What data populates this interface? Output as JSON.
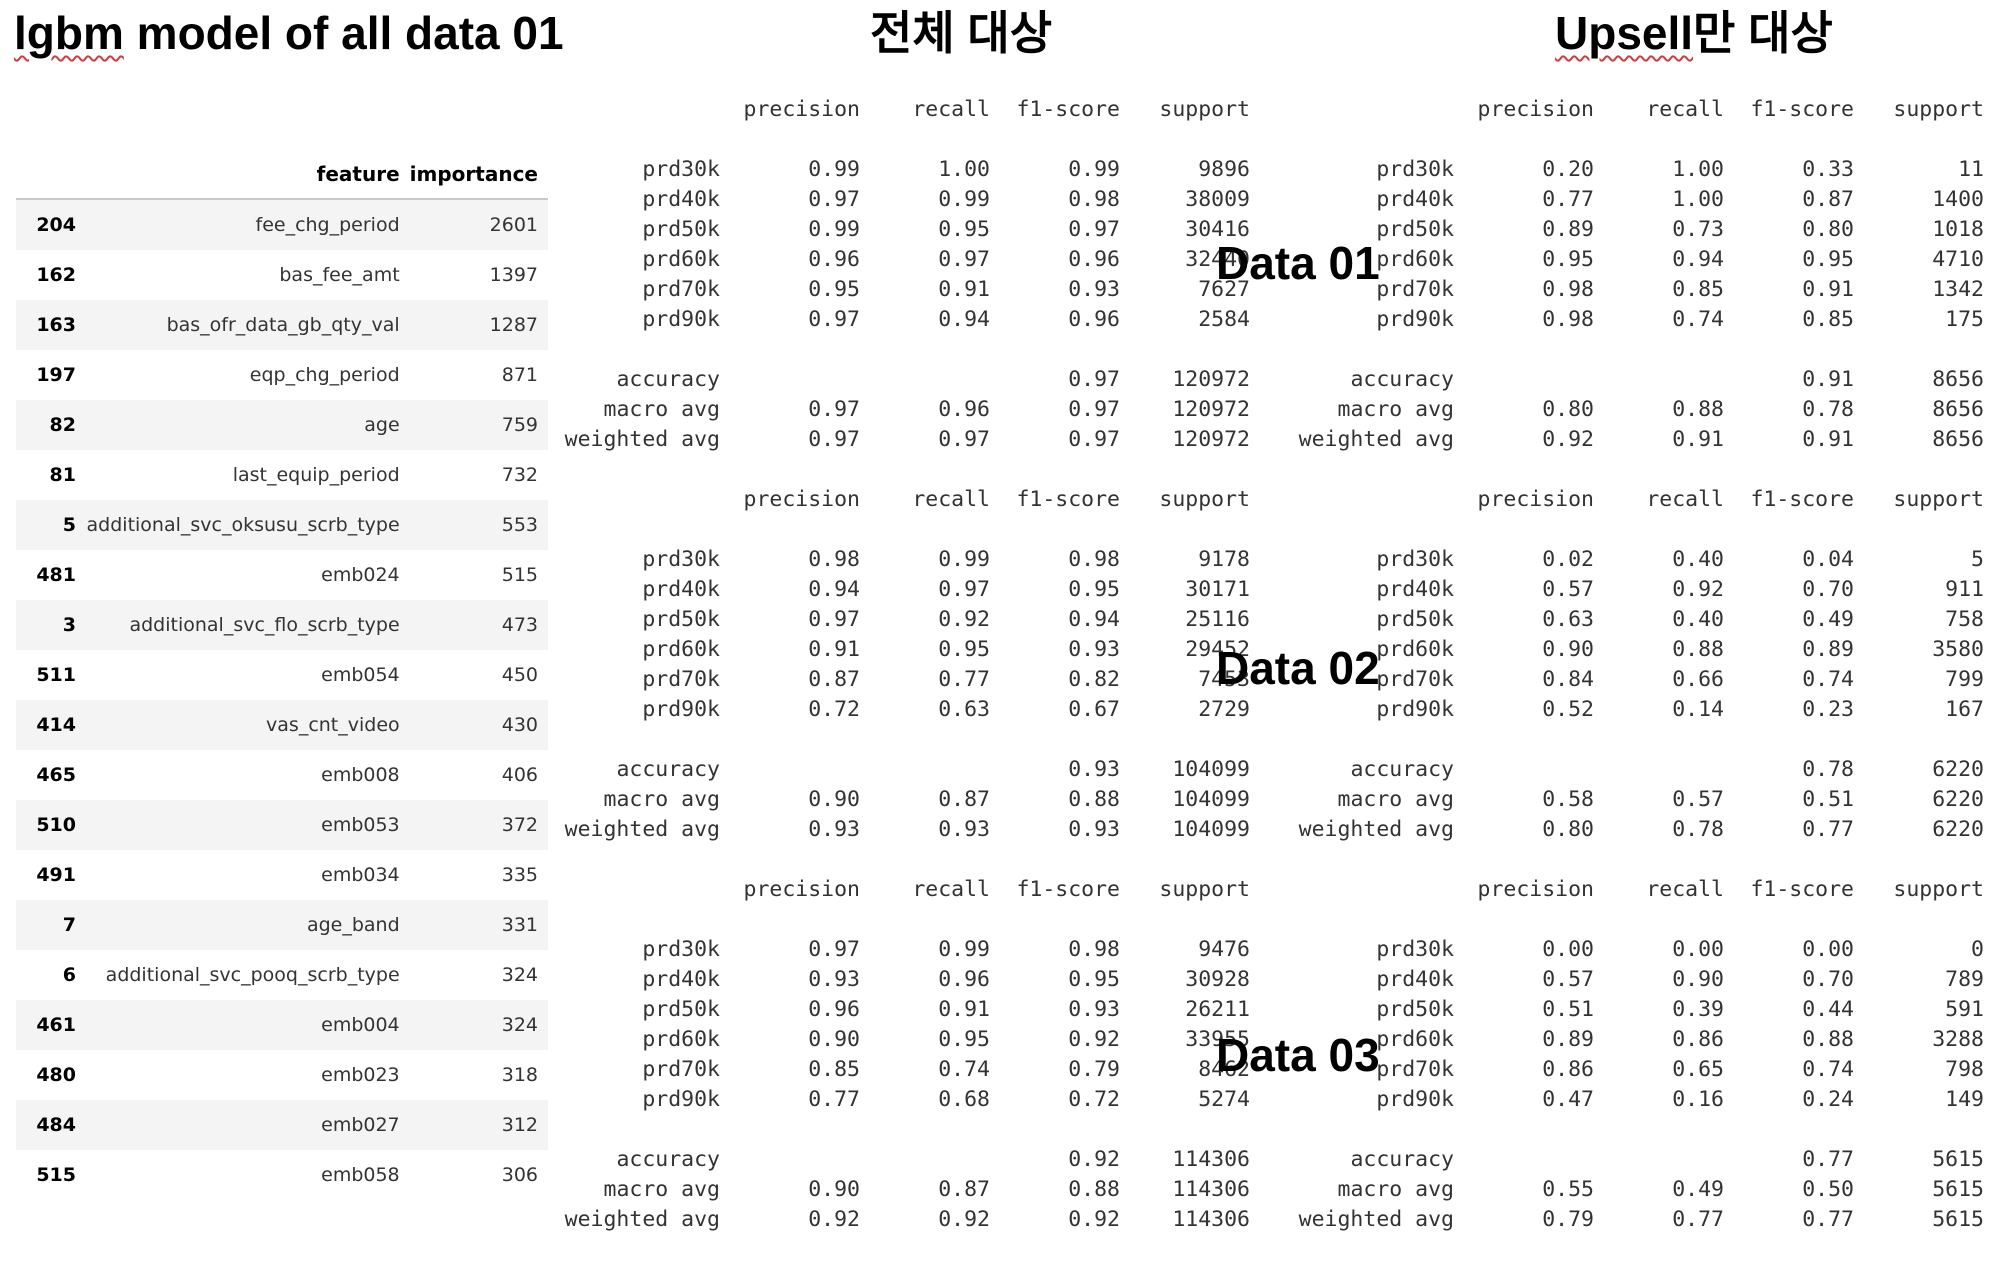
{
  "titles": {
    "main": "lgbm model of all data 01",
    "all": "전체 대상",
    "upsell": "Upsell만 대상"
  },
  "feature_importance": {
    "headers": {
      "feature": "feature",
      "importance": "importance"
    },
    "rows": [
      {
        "idx": "204",
        "feature": "fee_chg_period",
        "importance": "2601"
      },
      {
        "idx": "162",
        "feature": "bas_fee_amt",
        "importance": "1397"
      },
      {
        "idx": "163",
        "feature": "bas_ofr_data_gb_qty_val",
        "importance": "1287"
      },
      {
        "idx": "197",
        "feature": "eqp_chg_period",
        "importance": "871"
      },
      {
        "idx": "82",
        "feature": "age",
        "importance": "759"
      },
      {
        "idx": "81",
        "feature": "last_equip_period",
        "importance": "732"
      },
      {
        "idx": "5",
        "feature": "additional_svc_oksusu_scrb_type",
        "importance": "553"
      },
      {
        "idx": "481",
        "feature": "emb024",
        "importance": "515"
      },
      {
        "idx": "3",
        "feature": "additional_svc_flo_scrb_type",
        "importance": "473"
      },
      {
        "idx": "511",
        "feature": "emb054",
        "importance": "450"
      },
      {
        "idx": "414",
        "feature": "vas_cnt_video",
        "importance": "430"
      },
      {
        "idx": "465",
        "feature": "emb008",
        "importance": "406"
      },
      {
        "idx": "510",
        "feature": "emb053",
        "importance": "372"
      },
      {
        "idx": "491",
        "feature": "emb034",
        "importance": "335"
      },
      {
        "idx": "7",
        "feature": "age_band",
        "importance": "331"
      },
      {
        "idx": "6",
        "feature": "additional_svc_pooq_scrb_type",
        "importance": "324"
      },
      {
        "idx": "461",
        "feature": "emb004",
        "importance": "324"
      },
      {
        "idx": "480",
        "feature": "emb023",
        "importance": "318"
      },
      {
        "idx": "484",
        "feature": "emb027",
        "importance": "312"
      },
      {
        "idx": "515",
        "feature": "emb058",
        "importance": "306"
      }
    ]
  },
  "report_headers": {
    "precision": "precision",
    "recall": "recall",
    "f1": "f1-score",
    "support": "support"
  },
  "data_labels": [
    "Data 01",
    "Data 02",
    "Data 03"
  ],
  "reports": {
    "all": [
      {
        "classes": [
          {
            "label": "prd30k",
            "p": "0.99",
            "r": "1.00",
            "f": "0.99",
            "s": "9896"
          },
          {
            "label": "prd40k",
            "p": "0.97",
            "r": "0.99",
            "f": "0.98",
            "s": "38009"
          },
          {
            "label": "prd50k",
            "p": "0.99",
            "r": "0.95",
            "f": "0.97",
            "s": "30416"
          },
          {
            "label": "prd60k",
            "p": "0.96",
            "r": "0.97",
            "f": "0.96",
            "s": "32440"
          },
          {
            "label": "prd70k",
            "p": "0.95",
            "r": "0.91",
            "f": "0.93",
            "s": "7627"
          },
          {
            "label": "prd90k",
            "p": "0.97",
            "r": "0.94",
            "f": "0.96",
            "s": "2584"
          }
        ],
        "summary": [
          {
            "label": "accuracy",
            "p": "",
            "r": "",
            "f": "0.97",
            "s": "120972"
          },
          {
            "label": "macro avg",
            "p": "0.97",
            "r": "0.96",
            "f": "0.97",
            "s": "120972"
          },
          {
            "label": "weighted avg",
            "p": "0.97",
            "r": "0.97",
            "f": "0.97",
            "s": "120972"
          }
        ]
      },
      {
        "classes": [
          {
            "label": "prd30k",
            "p": "0.98",
            "r": "0.99",
            "f": "0.98",
            "s": "9178"
          },
          {
            "label": "prd40k",
            "p": "0.94",
            "r": "0.97",
            "f": "0.95",
            "s": "30171"
          },
          {
            "label": "prd50k",
            "p": "0.97",
            "r": "0.92",
            "f": "0.94",
            "s": "25116"
          },
          {
            "label": "prd60k",
            "p": "0.91",
            "r": "0.95",
            "f": "0.93",
            "s": "29452"
          },
          {
            "label": "prd70k",
            "p": "0.87",
            "r": "0.77",
            "f": "0.82",
            "s": "7453"
          },
          {
            "label": "prd90k",
            "p": "0.72",
            "r": "0.63",
            "f": "0.67",
            "s": "2729"
          }
        ],
        "summary": [
          {
            "label": "accuracy",
            "p": "",
            "r": "",
            "f": "0.93",
            "s": "104099"
          },
          {
            "label": "macro avg",
            "p": "0.90",
            "r": "0.87",
            "f": "0.88",
            "s": "104099"
          },
          {
            "label": "weighted avg",
            "p": "0.93",
            "r": "0.93",
            "f": "0.93",
            "s": "104099"
          }
        ]
      },
      {
        "classes": [
          {
            "label": "prd30k",
            "p": "0.97",
            "r": "0.99",
            "f": "0.98",
            "s": "9476"
          },
          {
            "label": "prd40k",
            "p": "0.93",
            "r": "0.96",
            "f": "0.95",
            "s": "30928"
          },
          {
            "label": "prd50k",
            "p": "0.96",
            "r": "0.91",
            "f": "0.93",
            "s": "26211"
          },
          {
            "label": "prd60k",
            "p": "0.90",
            "r": "0.95",
            "f": "0.92",
            "s": "33955"
          },
          {
            "label": "prd70k",
            "p": "0.85",
            "r": "0.74",
            "f": "0.79",
            "s": "8462"
          },
          {
            "label": "prd90k",
            "p": "0.77",
            "r": "0.68",
            "f": "0.72",
            "s": "5274"
          }
        ],
        "summary": [
          {
            "label": "accuracy",
            "p": "",
            "r": "",
            "f": "0.92",
            "s": "114306"
          },
          {
            "label": "macro avg",
            "p": "0.90",
            "r": "0.87",
            "f": "0.88",
            "s": "114306"
          },
          {
            "label": "weighted avg",
            "p": "0.92",
            "r": "0.92",
            "f": "0.92",
            "s": "114306"
          }
        ]
      }
    ],
    "upsell": [
      {
        "classes": [
          {
            "label": "prd30k",
            "p": "0.20",
            "r": "1.00",
            "f": "0.33",
            "s": "11"
          },
          {
            "label": "prd40k",
            "p": "0.77",
            "r": "1.00",
            "f": "0.87",
            "s": "1400"
          },
          {
            "label": "prd50k",
            "p": "0.89",
            "r": "0.73",
            "f": "0.80",
            "s": "1018"
          },
          {
            "label": "prd60k",
            "p": "0.95",
            "r": "0.94",
            "f": "0.95",
            "s": "4710"
          },
          {
            "label": "prd70k",
            "p": "0.98",
            "r": "0.85",
            "f": "0.91",
            "s": "1342"
          },
          {
            "label": "prd90k",
            "p": "0.98",
            "r": "0.74",
            "f": "0.85",
            "s": "175"
          }
        ],
        "summary": [
          {
            "label": "accuracy",
            "p": "",
            "r": "",
            "f": "0.91",
            "s": "8656"
          },
          {
            "label": "macro avg",
            "p": "0.80",
            "r": "0.88",
            "f": "0.78",
            "s": "8656"
          },
          {
            "label": "weighted avg",
            "p": "0.92",
            "r": "0.91",
            "f": "0.91",
            "s": "8656"
          }
        ]
      },
      {
        "classes": [
          {
            "label": "prd30k",
            "p": "0.02",
            "r": "0.40",
            "f": "0.04",
            "s": "5"
          },
          {
            "label": "prd40k",
            "p": "0.57",
            "r": "0.92",
            "f": "0.70",
            "s": "911"
          },
          {
            "label": "prd50k",
            "p": "0.63",
            "r": "0.40",
            "f": "0.49",
            "s": "758"
          },
          {
            "label": "prd60k",
            "p": "0.90",
            "r": "0.88",
            "f": "0.89",
            "s": "3580"
          },
          {
            "label": "prd70k",
            "p": "0.84",
            "r": "0.66",
            "f": "0.74",
            "s": "799"
          },
          {
            "label": "prd90k",
            "p": "0.52",
            "r": "0.14",
            "f": "0.23",
            "s": "167"
          }
        ],
        "summary": [
          {
            "label": "accuracy",
            "p": "",
            "r": "",
            "f": "0.78",
            "s": "6220"
          },
          {
            "label": "macro avg",
            "p": "0.58",
            "r": "0.57",
            "f": "0.51",
            "s": "6220"
          },
          {
            "label": "weighted avg",
            "p": "0.80",
            "r": "0.78",
            "f": "0.77",
            "s": "6220"
          }
        ]
      },
      {
        "classes": [
          {
            "label": "prd30k",
            "p": "0.00",
            "r": "0.00",
            "f": "0.00",
            "s": "0"
          },
          {
            "label": "prd40k",
            "p": "0.57",
            "r": "0.90",
            "f": "0.70",
            "s": "789"
          },
          {
            "label": "prd50k",
            "p": "0.51",
            "r": "0.39",
            "f": "0.44",
            "s": "591"
          },
          {
            "label": "prd60k",
            "p": "0.89",
            "r": "0.86",
            "f": "0.88",
            "s": "3288"
          },
          {
            "label": "prd70k",
            "p": "0.86",
            "r": "0.65",
            "f": "0.74",
            "s": "798"
          },
          {
            "label": "prd90k",
            "p": "0.47",
            "r": "0.16",
            "f": "0.24",
            "s": "149"
          }
        ],
        "summary": [
          {
            "label": "accuracy",
            "p": "",
            "r": "",
            "f": "0.77",
            "s": "5615"
          },
          {
            "label": "macro avg",
            "p": "0.55",
            "r": "0.49",
            "f": "0.50",
            "s": "5615"
          },
          {
            "label": "weighted avg",
            "p": "0.79",
            "r": "0.77",
            "f": "0.77",
            "s": "5615"
          }
        ]
      }
    ]
  }
}
